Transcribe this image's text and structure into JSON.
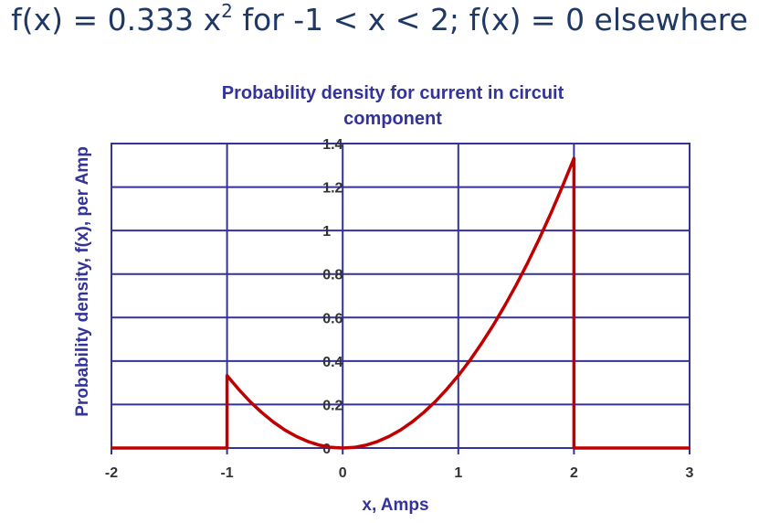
{
  "headline": {
    "prefix": "f(x) = 0.333 x",
    "superscript": "2",
    "suffix": " for -1 < x < 2; f(x) = 0 elsewhere"
  },
  "chart_data": {
    "type": "line",
    "title_lines": [
      "Probability density for current in circuit",
      "component"
    ],
    "xlabel": "x, Amps",
    "ylabel": "Probability density, f(x), per Amp",
    "xlim": [
      -2,
      3
    ],
    "ylim": [
      0,
      1.4
    ],
    "x_ticks": [
      "-2",
      "-1",
      "0",
      "1",
      "2",
      "3"
    ],
    "y_ticks": [
      "0",
      "0.2",
      "0.4",
      "0.6",
      "0.8",
      "1",
      "1.2",
      "1.4"
    ],
    "grid": true,
    "legend": "none",
    "series": [
      {
        "color": "#c00000",
        "points": [
          [
            -2,
            0
          ],
          [
            -1,
            0
          ],
          [
            -1,
            0.333
          ],
          [
            -0.9,
            0.27
          ],
          [
            -0.8,
            0.213
          ],
          [
            -0.7,
            0.163
          ],
          [
            -0.6,
            0.12
          ],
          [
            -0.5,
            0.083
          ],
          [
            -0.4,
            0.053
          ],
          [
            -0.3,
            0.03
          ],
          [
            -0.2,
            0.013
          ],
          [
            -0.1,
            0.003
          ],
          [
            0,
            0
          ],
          [
            0.1,
            0.003
          ],
          [
            0.2,
            0.013
          ],
          [
            0.3,
            0.03
          ],
          [
            0.4,
            0.053
          ],
          [
            0.5,
            0.083
          ],
          [
            0.6,
            0.12
          ],
          [
            0.7,
            0.163
          ],
          [
            0.8,
            0.213
          ],
          [
            0.9,
            0.27
          ],
          [
            1,
            0.333
          ],
          [
            1.1,
            0.403
          ],
          [
            1.2,
            0.48
          ],
          [
            1.3,
            0.563
          ],
          [
            1.4,
            0.653
          ],
          [
            1.5,
            0.749
          ],
          [
            1.6,
            0.852
          ],
          [
            1.7,
            0.962
          ],
          [
            1.8,
            1.079
          ],
          [
            1.9,
            1.202
          ],
          [
            2,
            1.332
          ],
          [
            2,
            0
          ],
          [
            3,
            0
          ]
        ]
      }
    ],
    "colors": {
      "grid": "#333399",
      "text": "#333399",
      "tick_text": "#333333",
      "line": "#c00000"
    }
  }
}
